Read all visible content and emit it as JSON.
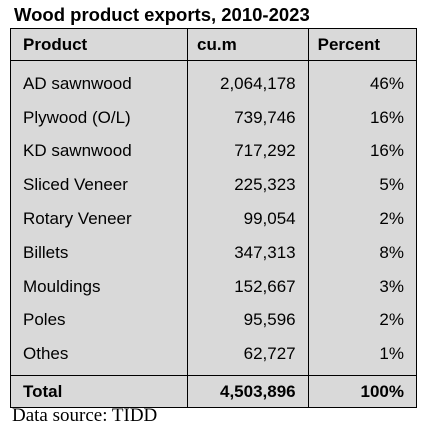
{
  "title": "Wood product exports, 2010-2023",
  "table": {
    "headers": [
      "Product",
      "cu.m",
      "Percent"
    ],
    "rows": [
      {
        "product": "AD sawnwood",
        "cum": "2,064,178",
        "percent": "46%"
      },
      {
        "product": "Plywood (O/L)",
        "cum": "739,746",
        "percent": "16%"
      },
      {
        "product": "KD sawnwood",
        "cum": "717,292",
        "percent": "16%"
      },
      {
        "product": "Sliced Veneer",
        "cum": "225,323",
        "percent": "5%"
      },
      {
        "product": "Rotary Veneer",
        "cum": "99,054",
        "percent": "2%"
      },
      {
        "product": "Billets",
        "cum": "347,313",
        "percent": "8%"
      },
      {
        "product": "Mouldings",
        "cum": "152,667",
        "percent": "3%"
      },
      {
        "product": "Poles",
        "cum": "95,596",
        "percent": "2%"
      },
      {
        "product": "Othes",
        "cum": "62,727",
        "percent": "1%"
      }
    ],
    "total": {
      "label": "Total",
      "cum": "4,503,896",
      "percent": "100%"
    }
  },
  "source": "Data source: TIDD",
  "colors": {
    "table_background": "#d9d9d9",
    "text": "#000000",
    "border": "#000000"
  }
}
